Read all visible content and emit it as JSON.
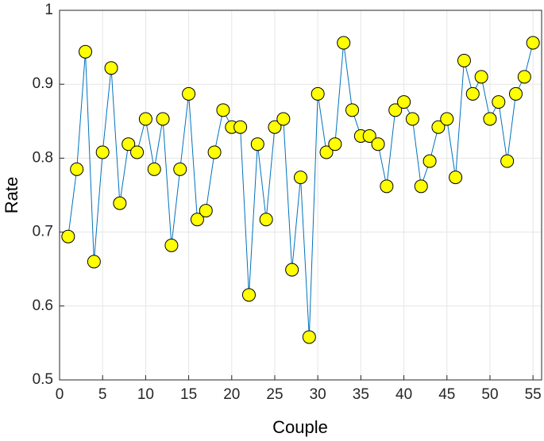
{
  "chart_data": {
    "type": "line",
    "x_label": "Couple",
    "y_label": "Rate",
    "x": [
      1,
      2,
      3,
      4,
      5,
      6,
      7,
      8,
      9,
      10,
      11,
      12,
      13,
      14,
      15,
      16,
      17,
      18,
      19,
      20,
      21,
      22,
      23,
      24,
      25,
      26,
      27,
      28,
      29,
      30,
      31,
      32,
      33,
      34,
      35,
      36,
      37,
      38,
      39,
      40,
      41,
      42,
      43,
      44,
      45,
      46,
      47,
      48,
      49,
      50,
      51,
      52,
      53,
      54,
      55
    ],
    "series": [
      {
        "color": "#0072bd",
        "marker_color": "#ffff00",
        "values": [
          0.694,
          0.785,
          0.944,
          0.66,
          0.808,
          0.922,
          0.739,
          0.819,
          0.808,
          0.853,
          0.785,
          0.853,
          0.682,
          0.785,
          0.887,
          0.717,
          0.729,
          0.808,
          0.865,
          0.842,
          0.842,
          0.615,
          0.819,
          0.717,
          0.842,
          0.853,
          0.649,
          0.774,
          0.558,
          0.887,
          0.808,
          0.819,
          0.956,
          0.865,
          0.83,
          0.83,
          0.819,
          0.762,
          0.865,
          0.876,
          0.853,
          0.762,
          0.796,
          0.842,
          0.853,
          0.774,
          0.932,
          0.887,
          0.91,
          0.853,
          0.876,
          0.796,
          0.887,
          0.91,
          0.956
        ]
      }
    ],
    "xlim": [
      0,
      56
    ],
    "xticks": [
      0,
      5,
      10,
      15,
      20,
      25,
      30,
      35,
      40,
      45,
      50,
      55
    ],
    "ylim": [
      0.5,
      1
    ],
    "yticks": [
      0.5,
      0.6,
      0.7,
      0.8,
      0.9,
      1
    ],
    "grid": true
  }
}
